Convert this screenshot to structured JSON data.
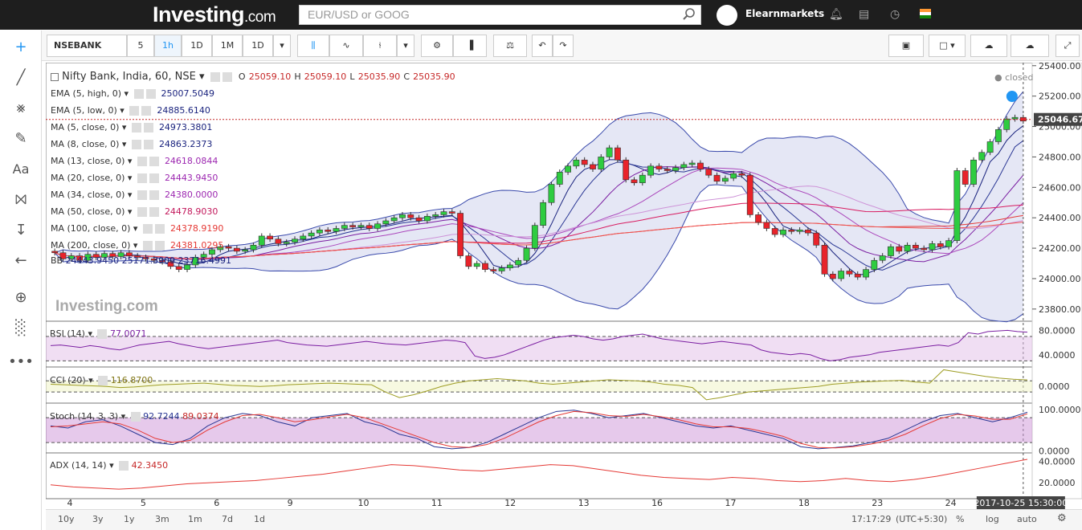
{
  "header": {
    "logo_main": "Investing",
    "logo_suffix": ".com",
    "search_placeholder": "EUR/USD or GOOG",
    "user": "Elearnmarkets"
  },
  "toolbar": {
    "symbol": "NSEBANK",
    "intervals": [
      "5",
      "1h",
      "1D",
      "1M",
      "1D"
    ]
  },
  "bottom": {
    "ranges": [
      "10y",
      "3y",
      "1y",
      "3m",
      "1m",
      "7d",
      "1d"
    ],
    "time": "17:17:29",
    "tz": "(UTC+5:30)",
    "pct": "%",
    "log": "log",
    "auto": "auto"
  },
  "chart_data": {
    "type": "candlestick",
    "title": "Nifty Bank, India, 60, NSE",
    "ohlc": {
      "o_label": "O",
      "o": "25059.10",
      "h_label": "H",
      "h": "25059.10",
      "l_label": "L",
      "l": "25035.90",
      "c_label": "C",
      "c": "25035.90"
    },
    "status": "closed",
    "last_price": "25046.67",
    "crosshair_time": "2017-10-25 15:30:00",
    "watermark": "Investing.com",
    "x_ticks": [
      "4",
      "5",
      "6",
      "9",
      "10",
      "11",
      "12",
      "13",
      "16",
      "17",
      "18",
      "23",
      "24",
      "25"
    ],
    "y_ticks": [
      "25400.00",
      "25200.00",
      "25000.00",
      "24800.00",
      "24600.00",
      "24400.00",
      "24200.00",
      "24000.00",
      "23800.00"
    ],
    "ylim": [
      23720,
      25420
    ],
    "indicators": [
      {
        "label": "EMA (5, high, 0)",
        "value": "25007.5049",
        "color": "#1a237e"
      },
      {
        "label": "EMA (5, low, 0)",
        "value": "24885.6140",
        "color": "#1a237e"
      },
      {
        "label": "MA (5, close, 0)",
        "value": "24973.3801",
        "color": "#1a237e"
      },
      {
        "label": "MA (8, close, 0)",
        "value": "24863.2373",
        "color": "#1a237e"
      },
      {
        "label": "MA (13, close, 0)",
        "value": "24618.0844",
        "color": "#9c27b0"
      },
      {
        "label": "MA (20, close, 0)",
        "value": "24443.9450",
        "color": "#9c27b0"
      },
      {
        "label": "MA (34, close, 0)",
        "value": "24380.0000",
        "color": "#9c27b0"
      },
      {
        "label": "MA (50, close, 0)",
        "value": "24478.9030",
        "color": "#c2185b"
      },
      {
        "label": "MA (100, close, 0)",
        "value": "24378.9190",
        "color": "#e53935"
      },
      {
        "label": "MA (200, close, 0)",
        "value": "24381.0295",
        "color": "#e53935"
      }
    ],
    "bb": {
      "label": "BB",
      "values": [
        "24443.9450",
        "25171.3909",
        "23716.4991"
      ]
    },
    "closes": [
      24170,
      24130,
      24150,
      24120,
      24160,
      24140,
      24165,
      24145,
      24170,
      24150,
      24140,
      24130,
      24120,
      24110,
      24080,
      24060,
      24090,
      24140,
      24160,
      24190,
      24210,
      24200,
      24180,
      24190,
      24220,
      24280,
      24260,
      24230,
      24240,
      24260,
      24280,
      24300,
      24320,
      24310,
      24330,
      24350,
      24340,
      24350,
      24330,
      24360,
      24380,
      24400,
      24420,
      24400,
      24380,
      24410,
      24420,
      24440,
      24430,
      24150,
      24080,
      24100,
      24060,
      24050,
      24070,
      24090,
      24120,
      24200,
      24350,
      24500,
      24620,
      24700,
      24740,
      24780,
      24750,
      24720,
      24800,
      24860,
      24780,
      24650,
      24630,
      24680,
      24740,
      24720,
      24710,
      24730,
      24750,
      24760,
      24720,
      24680,
      24640,
      24660,
      24690,
      24680,
      24420,
      24370,
      24330,
      24290,
      24320,
      24310,
      24320,
      24300,
      24220,
      24030,
      24000,
      24050,
      24030,
      24010,
      24060,
      24120,
      24150,
      24210,
      24180,
      24220,
      24200,
      24190,
      24230,
      24210,
      24250,
      24710,
      24620,
      24780,
      24830,
      24900,
      24980,
      25050,
      25060,
      25036
    ],
    "volumes_hidden": [],
    "rsi": {
      "label": "RSI (14)",
      "value": "77.0071",
      "ticks": [
        "80.0000",
        "40.0000"
      ],
      "series": [
        55,
        56,
        54,
        52,
        55,
        53,
        50,
        48,
        52,
        56,
        58,
        60,
        62,
        58,
        55,
        52,
        50,
        52,
        54,
        56,
        58,
        60,
        62,
        64,
        60,
        58,
        56,
        55,
        54,
        56,
        58,
        60,
        62,
        60,
        58,
        57,
        56,
        58,
        60,
        62,
        64,
        63,
        60,
        38,
        34,
        36,
        40,
        46,
        52,
        58,
        64,
        68,
        70,
        72,
        70,
        66,
        64,
        66,
        70,
        72,
        74,
        70,
        66,
        64,
        62,
        60,
        58,
        60,
        62,
        60,
        58,
        56,
        48,
        44,
        42,
        40,
        42,
        40,
        34,
        30,
        32,
        36,
        38,
        40,
        44,
        46,
        48,
        50,
        52,
        54,
        56,
        54,
        60,
        76,
        74,
        78,
        79,
        80,
        78,
        77
      ]
    },
    "cci": {
      "label": "CCI (20)",
      "value": "116.8700",
      "ticks": [
        "0.0000"
      ],
      "series": [
        40,
        30,
        20,
        10,
        0,
        -20,
        -10,
        10,
        30,
        40,
        50,
        60,
        40,
        20,
        10,
        0,
        10,
        30,
        40,
        50,
        60,
        50,
        40,
        30,
        -100,
        -200,
        -150,
        -80,
        0,
        60,
        100,
        120,
        140,
        120,
        100,
        60,
        40,
        60,
        80,
        100,
        120,
        110,
        100,
        80,
        40,
        20,
        -20,
        -240,
        -200,
        -150,
        -100,
        -80,
        -60,
        -40,
        -20,
        0,
        40,
        60,
        80,
        90,
        100,
        110,
        80,
        60,
        300,
        260,
        220,
        180,
        150,
        130,
        117
      ]
    },
    "stoch": {
      "label": "Stoch (14, 3, 3)",
      "k": "92.7244",
      "d": "89.0374",
      "ticks": [
        "100.0000",
        "0.0000"
      ],
      "k_series": [
        60,
        55,
        70,
        75,
        60,
        40,
        20,
        15,
        30,
        60,
        80,
        90,
        85,
        70,
        60,
        80,
        85,
        90,
        70,
        60,
        40,
        30,
        10,
        5,
        8,
        20,
        40,
        60,
        80,
        95,
        98,
        90,
        80,
        85,
        90,
        80,
        70,
        60,
        55,
        60,
        50,
        40,
        30,
        10,
        5,
        8,
        12,
        20,
        30,
        50,
        70,
        85,
        90,
        80,
        70,
        80,
        93
      ],
      "d_series": [
        58,
        60,
        65,
        70,
        65,
        50,
        30,
        20,
        25,
        50,
        70,
        85,
        88,
        80,
        70,
        75,
        82,
        88,
        80,
        65,
        50,
        35,
        20,
        10,
        8,
        15,
        30,
        50,
        70,
        85,
        95,
        92,
        85,
        83,
        88,
        82,
        75,
        65,
        58,
        58,
        54,
        45,
        35,
        18,
        8,
        7,
        10,
        16,
        25,
        40,
        60,
        78,
        88,
        84,
        76,
        76,
        89
      ]
    },
    "adx": {
      "label": "ADX (14, 14)",
      "value": "42.3450",
      "ticks": [
        "40.0000",
        "20.0000"
      ],
      "series": [
        18,
        16,
        15,
        14,
        15,
        17,
        19,
        20,
        21,
        22,
        24,
        26,
        28,
        31,
        34,
        37,
        36,
        34,
        32,
        31,
        33,
        35,
        37,
        36,
        33,
        30,
        27,
        25,
        24,
        23,
        25,
        24,
        22,
        21,
        22,
        24,
        22,
        21,
        23,
        26,
        30,
        34,
        38,
        42
      ]
    }
  }
}
